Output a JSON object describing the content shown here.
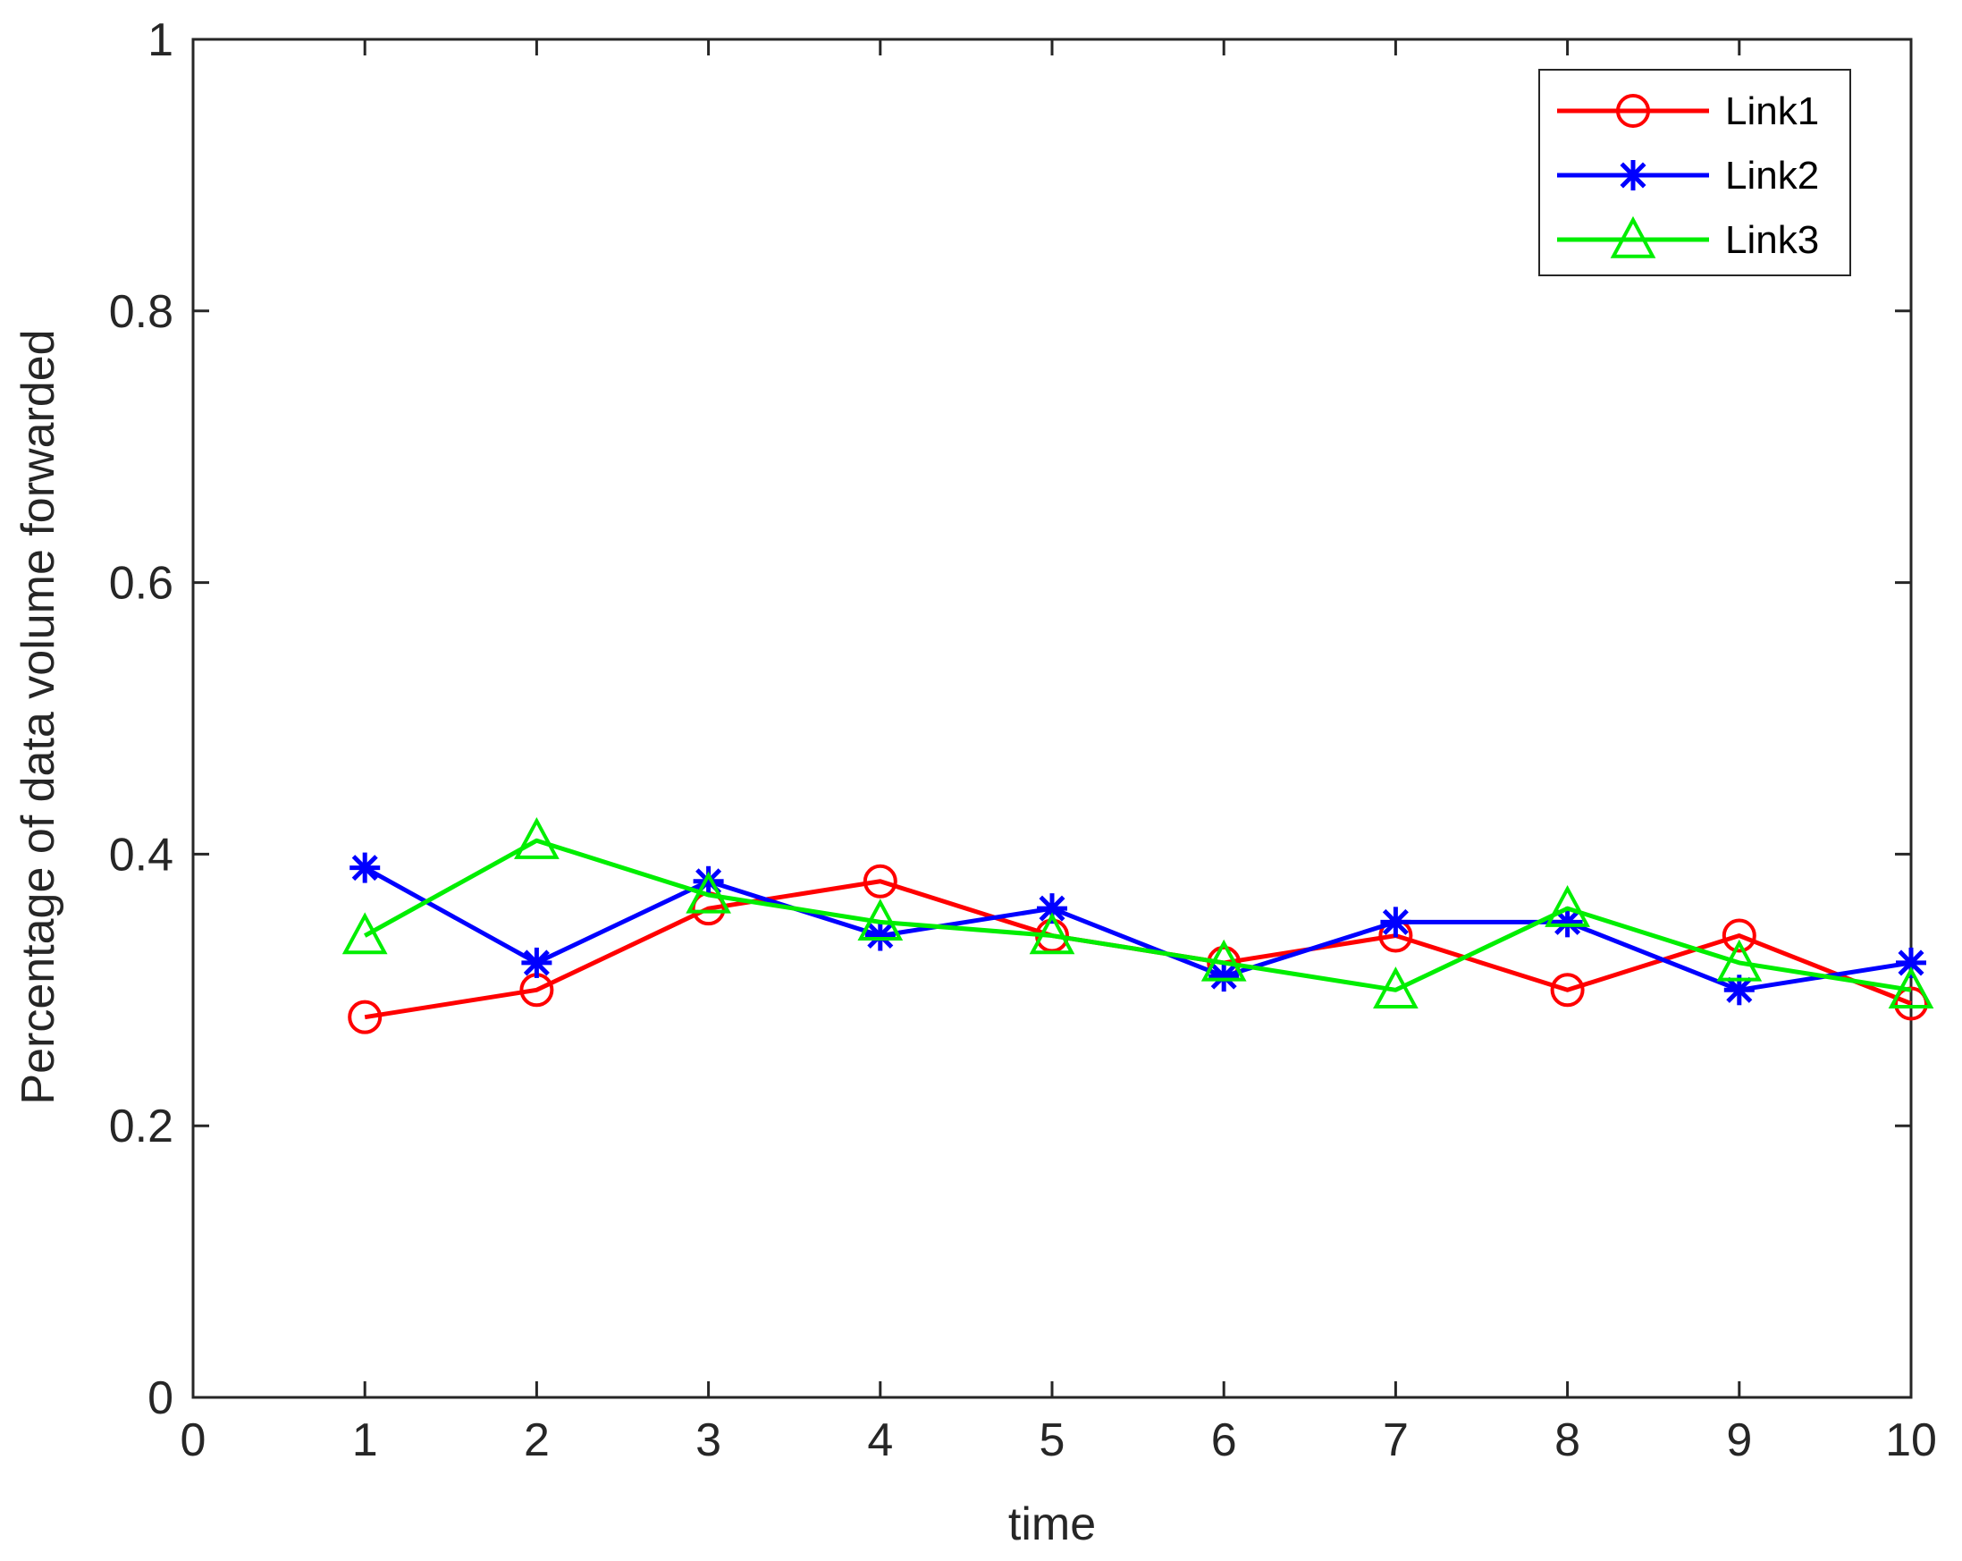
{
  "chart_data": {
    "type": "line",
    "title": "",
    "xlabel": "time",
    "ylabel": "Percentage of data volume forwarded",
    "xlim": [
      0,
      10
    ],
    "ylim": [
      0,
      1
    ],
    "xticks": [
      "0",
      "1",
      "2",
      "3",
      "4",
      "5",
      "6",
      "7",
      "8",
      "9",
      "10"
    ],
    "yticks": [
      "0",
      "0.2",
      "0.4",
      "0.6",
      "0.8",
      "1"
    ],
    "grid": false,
    "legend_position": "top-right",
    "x": [
      1,
      2,
      3,
      4,
      5,
      6,
      7,
      8,
      9,
      10
    ],
    "series": [
      {
        "name": "Link1",
        "color": "#ff0000",
        "marker": "circle",
        "values": [
          0.28,
          0.3,
          0.36,
          0.38,
          0.34,
          0.32,
          0.34,
          0.3,
          0.34,
          0.29
        ]
      },
      {
        "name": "Link2",
        "color": "#0000ff",
        "marker": "asterisk",
        "values": [
          0.39,
          0.32,
          0.38,
          0.34,
          0.36,
          0.31,
          0.35,
          0.35,
          0.3,
          0.32
        ]
      },
      {
        "name": "Link3",
        "color": "#00ee00",
        "marker": "triangle",
        "values": [
          0.34,
          0.41,
          0.37,
          0.35,
          0.34,
          0.32,
          0.3,
          0.36,
          0.32,
          0.3
        ]
      }
    ]
  }
}
